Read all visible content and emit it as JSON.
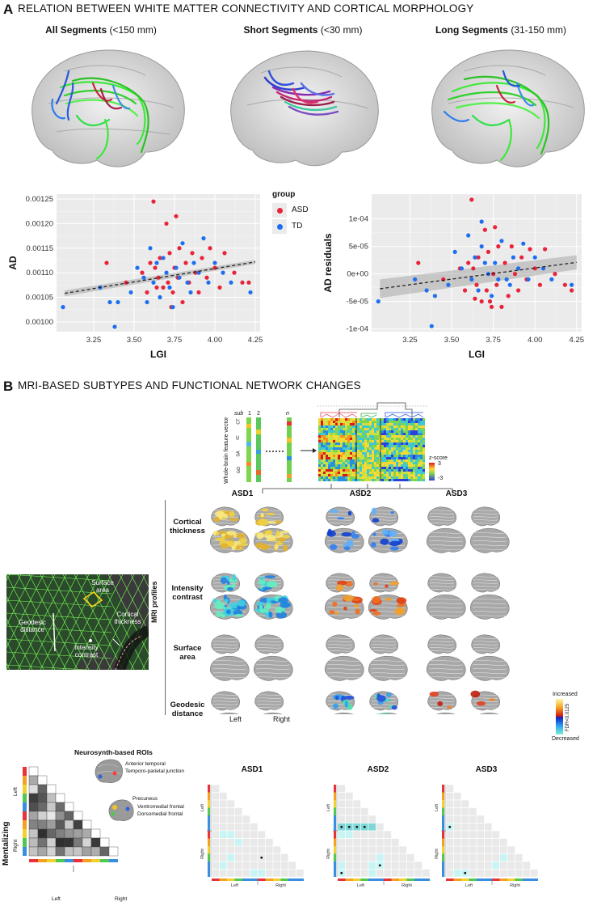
{
  "panel_a": {
    "letter": "A",
    "title": "RELATION BETWEEN WHITE MATTER CONNECTIVITY AND CORTICAL MORPHOLOGY",
    "brains": [
      {
        "title": "All Segments",
        "range": "(<150 mm)"
      },
      {
        "title": "Short Segments",
        "range": "(<30 mm)"
      },
      {
        "title": "Long Segments",
        "range": "(31-150 mm)"
      }
    ],
    "legend": {
      "title": "group",
      "entries": [
        {
          "label": "ASD",
          "color": "#e8233a"
        },
        {
          "label": "TD",
          "color": "#1e6ff0"
        }
      ]
    }
  },
  "panel_b": {
    "letter": "B",
    "title": "MRI-BASED SUBTYPES AND FUNCTIONAL NETWORK CHANGES",
    "feature_vector_label": "Whole-brain feature vector",
    "feature_groups": [
      "CT",
      "IC",
      "SA",
      "GD"
    ],
    "feature_count": "20484",
    "sub_labels": [
      "sub",
      "1",
      "2",
      "n"
    ],
    "zscore": {
      "title": "z-score",
      "max": "3",
      "min": "-3"
    },
    "subtypes": [
      "ASD1",
      "ASD2",
      "ASD3"
    ],
    "mri_profiles_label": "MRI profiles",
    "rows": [
      "Cortical thickness",
      "Intensity contrast",
      "Surface area",
      "Geodesic distance"
    ],
    "hemis": [
      "Left",
      "Right"
    ],
    "colorbar": {
      "top": "Increased",
      "bottom": "Decreased",
      "label": "FDR<0.0125"
    },
    "mesh_labels": {
      "surface": "Surface area",
      "geodesic": "Geodesic distance",
      "thickness": "Cortical thickness",
      "intensity": "Intensity contrast"
    },
    "neurosynth": {
      "title": "Neurosynth-based ROIs",
      "network": "Mentalizing",
      "rois": [
        "Anterior temporal",
        "Temporo-parietal junction",
        "Precuneus",
        "Ventromedial frontal",
        "Dorsomedial frontal"
      ],
      "axis_left": "Left",
      "axis_right": "Right"
    },
    "matrix_titles": [
      "ASD1",
      "ASD2",
      "ASD3"
    ]
  },
  "chart_data": [
    {
      "type": "scatter",
      "title": "",
      "xlabel": "LGI",
      "ylabel": "AD",
      "xlim": [
        3.02,
        4.28
      ],
      "ylim": [
        0.00098,
        0.00126
      ],
      "xticks": [
        "3.25",
        "3.50",
        "3.75",
        "4.00",
        "4.25"
      ],
      "yticks": [
        "0.00100",
        "0.00105",
        "0.00110",
        "0.00115",
        "0.00120",
        "0.00125"
      ],
      "xtick_values": [
        3.25,
        3.5,
        3.75,
        4.0,
        4.25
      ],
      "ytick_values": [
        0.001,
        0.00105,
        0.0011,
        0.00115,
        0.0012,
        0.00125
      ],
      "trend": {
        "x": [
          3.07,
          4.25
        ],
        "y": [
          0.001058,
          0.001122
        ],
        "ci": [
          6e-06,
          4e-06
        ]
      },
      "series": [
        {
          "name": "ASD",
          "color": "#e8233a",
          "points": [
            [
              3.33,
              0.00112
            ],
            [
              3.45,
              0.00108
            ],
            [
              3.55,
              0.0011
            ],
            [
              3.58,
              0.00106
            ],
            [
              3.6,
              0.00112
            ],
            [
              3.62,
              0.001245
            ],
            [
              3.63,
              0.00111
            ],
            [
              3.65,
              0.00109
            ],
            [
              3.66,
              0.00113
            ],
            [
              3.68,
              0.00107
            ],
            [
              3.7,
              0.0012
            ],
            [
              3.71,
              0.00108
            ],
            [
              3.72,
              0.00114
            ],
            [
              3.74,
              0.00106
            ],
            [
              3.75,
              0.00111
            ],
            [
              3.76,
              0.001215
            ],
            [
              3.77,
              0.00109
            ],
            [
              3.78,
              0.00115
            ],
            [
              3.8,
              0.00104
            ],
            [
              3.82,
              0.00112
            ],
            [
              3.84,
              0.00108
            ],
            [
              3.86,
              0.00114
            ],
            [
              3.88,
              0.0011
            ],
            [
              3.9,
              0.00106
            ],
            [
              3.92,
              0.00113
            ],
            [
              3.95,
              0.00109
            ],
            [
              3.97,
              0.00115
            ],
            [
              4.0,
              0.00111
            ],
            [
              4.03,
              0.00107
            ],
            [
              4.06,
              0.00114
            ],
            [
              4.12,
              0.0011
            ],
            [
              4.17,
              0.00108
            ],
            [
              4.21,
              0.00108
            ],
            [
              3.64,
              0.00107
            ],
            [
              3.73,
              0.00103
            ]
          ]
        },
        {
          "name": "TD",
          "color": "#1e6ff0",
          "points": [
            [
              3.06,
              0.00103
            ],
            [
              3.29,
              0.00107
            ],
            [
              3.35,
              0.00104
            ],
            [
              3.38,
              0.00099
            ],
            [
              3.4,
              0.00104
            ],
            [
              3.48,
              0.00106
            ],
            [
              3.52,
              0.00111
            ],
            [
              3.56,
              0.00109
            ],
            [
              3.6,
              0.00115
            ],
            [
              3.62,
              0.00108
            ],
            [
              3.64,
              0.00112
            ],
            [
              3.66,
              0.00105
            ],
            [
              3.68,
              0.00113
            ],
            [
              3.7,
              0.0011
            ],
            [
              3.72,
              0.00107
            ],
            [
              3.74,
              0.00103
            ],
            [
              3.76,
              0.00111
            ],
            [
              3.78,
              0.00109
            ],
            [
              3.8,
              0.00116
            ],
            [
              3.83,
              0.00108
            ],
            [
              3.85,
              0.00106
            ],
            [
              3.87,
              0.00112
            ],
            [
              3.9,
              0.0011
            ],
            [
              3.93,
              0.00117
            ],
            [
              3.96,
              0.00108
            ],
            [
              4.0,
              0.00112
            ],
            [
              4.05,
              0.0011
            ],
            [
              4.1,
              0.00108
            ],
            [
              4.22,
              0.00106
            ],
            [
              3.58,
              0.00104
            ]
          ]
        }
      ]
    },
    {
      "type": "scatter",
      "title": "",
      "xlabel": "LGI",
      "ylabel": "AD residuals",
      "xlim": [
        3.02,
        4.28
      ],
      "ylim": [
        -0.000105,
        0.000145
      ],
      "xticks": [
        "3.25",
        "3.50",
        "3.75",
        "4.00",
        "4.25"
      ],
      "yticks": [
        "-1e-04",
        "-5e-05",
        "0e+00",
        "5e-05",
        "1e-04"
      ],
      "xtick_values": [
        3.25,
        3.5,
        3.75,
        4.0,
        4.25
      ],
      "ytick_values": [
        -0.0001,
        -5e-05,
        0,
        5e-05,
        0.0001
      ],
      "trend": {
        "x": [
          3.07,
          4.25
        ],
        "y": [
          -2.7e-05,
          2.1e-05
        ],
        "ci": [
          1.7e-05,
          1.3e-05
        ]
      },
      "series": [
        {
          "name": "ASD",
          "color": "#e8233a",
          "points": [
            [
              3.3,
              2e-05
            ],
            [
              3.45,
              -1e-05
            ],
            [
              3.55,
              1e-05
            ],
            [
              3.58,
              -3e-05
            ],
            [
              3.6,
              2e-05
            ],
            [
              3.62,
              0.000135
            ],
            [
              3.63,
              1e-05
            ],
            [
              3.65,
              -2e-05
            ],
            [
              3.66,
              3e-05
            ],
            [
              3.68,
              -5e-05
            ],
            [
              3.7,
              8e-05
            ],
            [
              3.71,
              -3e-05
            ],
            [
              3.72,
              4e-05
            ],
            [
              3.74,
              -6e-05
            ],
            [
              3.75,
              0.0
            ],
            [
              3.76,
              8.5e-05
            ],
            [
              3.77,
              -2e-05
            ],
            [
              3.78,
              5e-05
            ],
            [
              3.8,
              -6e-05
            ],
            [
              3.82,
              2e-05
            ],
            [
              3.84,
              -4e-05
            ],
            [
              3.86,
              5e-05
            ],
            [
              3.88,
              0.0
            ],
            [
              3.9,
              -3e-05
            ],
            [
              3.92,
              3e-05
            ],
            [
              3.95,
              -1e-05
            ],
            [
              3.97,
              4.5e-05
            ],
            [
              4.0,
              1e-05
            ],
            [
              4.03,
              -2e-05
            ],
            [
              4.06,
              4.5e-05
            ],
            [
              4.12,
              0.0
            ],
            [
              4.18,
              -2e-05
            ],
            [
              4.22,
              -3e-05
            ],
            [
              3.64,
              -4.5e-05
            ],
            [
              3.73,
              -5e-05
            ]
          ]
        },
        {
          "name": "TD",
          "color": "#1e6ff0",
          "points": [
            [
              3.06,
              -5e-05
            ],
            [
              3.28,
              -1e-05
            ],
            [
              3.35,
              -3e-05
            ],
            [
              3.38,
              -9.5e-05
            ],
            [
              3.4,
              -4e-05
            ],
            [
              3.48,
              -2e-05
            ],
            [
              3.52,
              4e-05
            ],
            [
              3.56,
              1e-05
            ],
            [
              3.6,
              7e-05
            ],
            [
              3.62,
              -1e-05
            ],
            [
              3.64,
              3e-05
            ],
            [
              3.66,
              -3e-05
            ],
            [
              3.68,
              5e-05
            ],
            [
              3.7,
              2e-05
            ],
            [
              3.72,
              0.0
            ],
            [
              3.74,
              -4e-05
            ],
            [
              3.76,
              2e-05
            ],
            [
              3.78,
              -1e-05
            ],
            [
              3.8,
              6e-05
            ],
            [
              3.83,
              -1e-05
            ],
            [
              3.85,
              -2e-05
            ],
            [
              3.87,
              3e-05
            ],
            [
              3.9,
              1e-05
            ],
            [
              3.93,
              5.5e-05
            ],
            [
              3.96,
              -1e-05
            ],
            [
              4.0,
              3e-05
            ],
            [
              4.05,
              1e-05
            ],
            [
              4.1,
              -1e-05
            ],
            [
              4.22,
              -2e-05
            ],
            [
              3.68,
              9.5e-05
            ]
          ]
        }
      ]
    }
  ]
}
